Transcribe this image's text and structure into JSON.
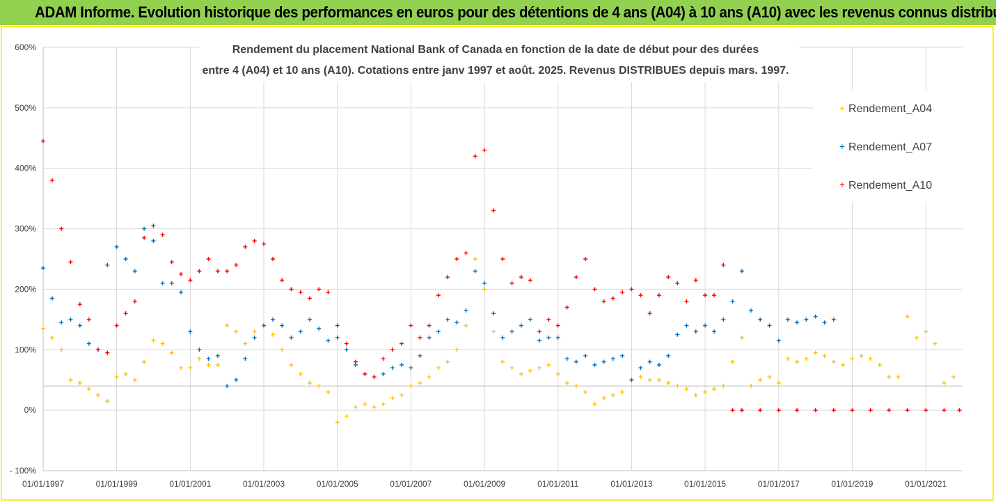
{
  "header": {
    "title": "ADAM Informe. Evolution historique des performances en euros pour des détentions de 4 ans (A04) à 10 ans (A10) avec les revenus connus distribués"
  },
  "chart_data": {
    "type": "scatter",
    "title_lines": [
      "Rendement du placement National Bank of Canada en fonction de la date de début pour des durées",
      "entre 4 (A04) et 10 ans (A10). Cotations entre janv 1997 et août. 2025. Revenus DISTRIBUES depuis mars. 1997."
    ],
    "xlabel": "",
    "ylabel": "",
    "x_tick_labels": [
      "01/01/1997",
      "01/01/1999",
      "01/01/2001",
      "01/01/2003",
      "01/01/2005",
      "01/01/2007",
      "01/01/2009",
      "01/01/2011",
      "01/01/2013",
      "01/01/2015",
      "01/01/2017",
      "01/01/2019",
      "01/01/2021"
    ],
    "xlim": [
      "1997-01-01",
      "2022-01-01"
    ],
    "y_tick_labels": [
      "600%",
      "500%",
      "400%",
      "300%",
      "200%",
      "100%",
      "0%",
      "- 100%"
    ],
    "ylim": [
      -100,
      600
    ],
    "reference_line": 40,
    "grid": true,
    "legend_position": "right",
    "marker": "+",
    "colors": {
      "A04": "#ffc000",
      "A07": "#0070c0",
      "A10": "#ff0000"
    },
    "series": [
      {
        "name": "Rendement_A04",
        "color": "#ffc000",
        "points": [
          [
            "1997-01",
            135
          ],
          [
            "1997-04",
            120
          ],
          [
            "1997-07",
            100
          ],
          [
            "1997-10",
            50
          ],
          [
            "1998-01",
            45
          ],
          [
            "1998-04",
            35
          ],
          [
            "1998-07",
            25
          ],
          [
            "1998-10",
            15
          ],
          [
            "1999-01",
            55
          ],
          [
            "1999-04",
            60
          ],
          [
            "1999-07",
            50
          ],
          [
            "1999-10",
            80
          ],
          [
            "2000-01",
            115
          ],
          [
            "2000-04",
            110
          ],
          [
            "2000-07",
            95
          ],
          [
            "2000-10",
            70
          ],
          [
            "2001-01",
            70
          ],
          [
            "2001-04",
            85
          ],
          [
            "2001-07",
            75
          ],
          [
            "2001-10",
            75
          ],
          [
            "2002-01",
            140
          ],
          [
            "2002-04",
            130
          ],
          [
            "2002-07",
            110
          ],
          [
            "2002-10",
            130
          ],
          [
            "2003-01",
            140
          ],
          [
            "2003-04",
            125
          ],
          [
            "2003-07",
            100
          ],
          [
            "2003-10",
            75
          ],
          [
            "2004-01",
            60
          ],
          [
            "2004-04",
            45
          ],
          [
            "2004-07",
            40
          ],
          [
            "2004-10",
            30
          ],
          [
            "2005-01",
            -20
          ],
          [
            "2005-04",
            -10
          ],
          [
            "2005-07",
            5
          ],
          [
            "2005-10",
            10
          ],
          [
            "2006-01",
            5
          ],
          [
            "2006-04",
            10
          ],
          [
            "2006-07",
            20
          ],
          [
            "2006-10",
            25
          ],
          [
            "2007-01",
            40
          ],
          [
            "2007-04",
            45
          ],
          [
            "2007-07",
            55
          ],
          [
            "2007-10",
            70
          ],
          [
            "2008-01",
            80
          ],
          [
            "2008-04",
            100
          ],
          [
            "2008-07",
            140
          ],
          [
            "2008-10",
            250
          ],
          [
            "2009-01",
            200
          ],
          [
            "2009-04",
            130
          ],
          [
            "2009-07",
            80
          ],
          [
            "2009-10",
            70
          ],
          [
            "2010-01",
            60
          ],
          [
            "2010-04",
            65
          ],
          [
            "2010-07",
            70
          ],
          [
            "2010-10",
            75
          ],
          [
            "2011-01",
            60
          ],
          [
            "2011-04",
            45
          ],
          [
            "2011-07",
            40
          ],
          [
            "2011-10",
            30
          ],
          [
            "2012-01",
            10
          ],
          [
            "2012-04",
            20
          ],
          [
            "2012-07",
            25
          ],
          [
            "2012-10",
            30
          ],
          [
            "2013-01",
            50
          ],
          [
            "2013-04",
            55
          ],
          [
            "2013-07",
            50
          ],
          [
            "2013-10",
            50
          ],
          [
            "2014-01",
            45
          ],
          [
            "2014-04",
            40
          ],
          [
            "2014-07",
            35
          ],
          [
            "2014-10",
            25
          ],
          [
            "2015-01",
            30
          ],
          [
            "2015-04",
            35
          ],
          [
            "2015-07",
            40
          ],
          [
            "2015-10",
            80
          ],
          [
            "2016-01",
            120
          ],
          [
            "2016-04",
            40
          ],
          [
            "2016-07",
            50
          ],
          [
            "2016-10",
            55
          ],
          [
            "2017-01",
            45
          ],
          [
            "2017-04",
            85
          ],
          [
            "2017-07",
            80
          ],
          [
            "2017-10",
            85
          ],
          [
            "2018-01",
            95
          ],
          [
            "2018-04",
            90
          ],
          [
            "2018-07",
            80
          ],
          [
            "2018-10",
            75
          ],
          [
            "2019-01",
            85
          ],
          [
            "2019-04",
            90
          ],
          [
            "2019-07",
            85
          ],
          [
            "2019-10",
            75
          ],
          [
            "2020-01",
            55
          ],
          [
            "2020-04",
            55
          ],
          [
            "2020-07",
            155
          ],
          [
            "2020-10",
            120
          ],
          [
            "2021-01",
            130
          ],
          [
            "2021-04",
            110
          ],
          [
            "2021-07",
            45
          ],
          [
            "2021-10",
            55
          ]
        ]
      },
      {
        "name": "Rendement_A07",
        "color": "#0070c0",
        "points": [
          [
            "1997-01",
            235
          ],
          [
            "1997-04",
            185
          ],
          [
            "1997-07",
            145
          ],
          [
            "1997-10",
            150
          ],
          [
            "1998-01",
            140
          ],
          [
            "1998-04",
            110
          ],
          [
            "1998-07",
            100
          ],
          [
            "1998-10",
            240
          ],
          [
            "1999-01",
            270
          ],
          [
            "1999-04",
            250
          ],
          [
            "1999-07",
            230
          ],
          [
            "1999-10",
            300
          ],
          [
            "2000-01",
            280
          ],
          [
            "2000-04",
            210
          ],
          [
            "2000-07",
            210
          ],
          [
            "2000-10",
            195
          ],
          [
            "2001-01",
            130
          ],
          [
            "2001-04",
            100
          ],
          [
            "2001-07",
            85
          ],
          [
            "2001-10",
            90
          ],
          [
            "2002-01",
            40
          ],
          [
            "2002-04",
            50
          ],
          [
            "2002-07",
            85
          ],
          [
            "2002-10",
            120
          ],
          [
            "2003-01",
            140
          ],
          [
            "2003-04",
            150
          ],
          [
            "2003-07",
            140
          ],
          [
            "2003-10",
            120
          ],
          [
            "2004-01",
            130
          ],
          [
            "2004-04",
            150
          ],
          [
            "2004-07",
            135
          ],
          [
            "2004-10",
            115
          ],
          [
            "2005-01",
            120
          ],
          [
            "2005-04",
            100
          ],
          [
            "2005-07",
            75
          ],
          [
            "2005-10",
            60
          ],
          [
            "2006-01",
            55
          ],
          [
            "2006-04",
            60
          ],
          [
            "2006-07",
            70
          ],
          [
            "2006-10",
            75
          ],
          [
            "2007-01",
            70
          ],
          [
            "2007-04",
            90
          ],
          [
            "2007-07",
            120
          ],
          [
            "2007-10",
            130
          ],
          [
            "2008-01",
            150
          ],
          [
            "2008-04",
            145
          ],
          [
            "2008-07",
            165
          ],
          [
            "2008-10",
            230
          ],
          [
            "2009-01",
            210
          ],
          [
            "2009-04",
            160
          ],
          [
            "2009-07",
            120
          ],
          [
            "2009-10",
            130
          ],
          [
            "2010-01",
            140
          ],
          [
            "2010-04",
            150
          ],
          [
            "2010-07",
            115
          ],
          [
            "2010-10",
            120
          ],
          [
            "2011-01",
            120
          ],
          [
            "2011-04",
            85
          ],
          [
            "2011-07",
            80
          ],
          [
            "2011-10",
            90
          ],
          [
            "2012-01",
            75
          ],
          [
            "2012-04",
            80
          ],
          [
            "2012-07",
            85
          ],
          [
            "2012-10",
            90
          ],
          [
            "2013-01",
            50
          ],
          [
            "2013-04",
            70
          ],
          [
            "2013-07",
            80
          ],
          [
            "2013-10",
            75
          ],
          [
            "2014-01",
            90
          ],
          [
            "2014-04",
            125
          ],
          [
            "2014-07",
            140
          ],
          [
            "2014-10",
            130
          ],
          [
            "2015-01",
            140
          ],
          [
            "2015-04",
            130
          ],
          [
            "2015-07",
            150
          ],
          [
            "2015-10",
            180
          ],
          [
            "2016-01",
            230
          ],
          [
            "2016-04",
            165
          ],
          [
            "2016-07",
            150
          ],
          [
            "2016-10",
            140
          ],
          [
            "2017-01",
            115
          ],
          [
            "2017-04",
            150
          ],
          [
            "2017-07",
            145
          ],
          [
            "2017-10",
            150
          ],
          [
            "2018-01",
            155
          ],
          [
            "2018-04",
            145
          ],
          [
            "2018-07",
            150
          ]
        ]
      },
      {
        "name": "Rendement_A10",
        "color": "#ff0000",
        "points": [
          [
            "1997-01",
            445
          ],
          [
            "1997-04",
            380
          ],
          [
            "1997-07",
            300
          ],
          [
            "1997-10",
            245
          ],
          [
            "1998-01",
            175
          ],
          [
            "1998-04",
            150
          ],
          [
            "1998-07",
            100
          ],
          [
            "1998-10",
            95
          ],
          [
            "1999-01",
            140
          ],
          [
            "1999-04",
            160
          ],
          [
            "1999-07",
            180
          ],
          [
            "1999-10",
            285
          ],
          [
            "2000-01",
            305
          ],
          [
            "2000-04",
            290
          ],
          [
            "2000-07",
            245
          ],
          [
            "2000-10",
            225
          ],
          [
            "2001-01",
            215
          ],
          [
            "2001-04",
            230
          ],
          [
            "2001-07",
            250
          ],
          [
            "2001-10",
            230
          ],
          [
            "2002-01",
            230
          ],
          [
            "2002-04",
            240
          ],
          [
            "2002-07",
            270
          ],
          [
            "2002-10",
            280
          ],
          [
            "2003-01",
            275
          ],
          [
            "2003-04",
            250
          ],
          [
            "2003-07",
            215
          ],
          [
            "2003-10",
            200
          ],
          [
            "2004-01",
            195
          ],
          [
            "2004-04",
            185
          ],
          [
            "2004-07",
            200
          ],
          [
            "2004-10",
            195
          ],
          [
            "2005-01",
            140
          ],
          [
            "2005-04",
            110
          ],
          [
            "2005-07",
            80
          ],
          [
            "2005-10",
            60
          ],
          [
            "2006-01",
            55
          ],
          [
            "2006-04",
            85
          ],
          [
            "2006-07",
            100
          ],
          [
            "2006-10",
            110
          ],
          [
            "2007-01",
            140
          ],
          [
            "2007-04",
            120
          ],
          [
            "2007-07",
            140
          ],
          [
            "2007-10",
            190
          ],
          [
            "2008-01",
            220
          ],
          [
            "2008-04",
            250
          ],
          [
            "2008-07",
            260
          ],
          [
            "2008-10",
            420
          ],
          [
            "2009-01",
            430
          ],
          [
            "2009-04",
            330
          ],
          [
            "2009-07",
            250
          ],
          [
            "2009-10",
            210
          ],
          [
            "2010-01",
            220
          ],
          [
            "2010-04",
            215
          ],
          [
            "2010-07",
            130
          ],
          [
            "2010-10",
            150
          ],
          [
            "2011-01",
            140
          ],
          [
            "2011-04",
            170
          ],
          [
            "2011-07",
            220
          ],
          [
            "2011-10",
            250
          ],
          [
            "2012-01",
            200
          ],
          [
            "2012-04",
            180
          ],
          [
            "2012-07",
            185
          ],
          [
            "2012-10",
            195
          ],
          [
            "2013-01",
            200
          ],
          [
            "2013-04",
            190
          ],
          [
            "2013-07",
            160
          ],
          [
            "2013-10",
            190
          ],
          [
            "2014-01",
            220
          ],
          [
            "2014-04",
            210
          ],
          [
            "2014-07",
            180
          ],
          [
            "2014-10",
            215
          ],
          [
            "2015-01",
            190
          ],
          [
            "2015-04",
            190
          ],
          [
            "2015-07",
            240
          ],
          [
            "2015-10",
            0
          ],
          [
            "2016-01",
            0
          ],
          [
            "2016-07",
            0
          ],
          [
            "2017-01",
            0
          ],
          [
            "2017-07",
            0
          ],
          [
            "2018-01",
            0
          ],
          [
            "2018-07",
            0
          ],
          [
            "2019-01",
            0
          ],
          [
            "2019-07",
            0
          ],
          [
            "2020-01",
            0
          ],
          [
            "2020-07",
            0
          ],
          [
            "2021-01",
            0
          ],
          [
            "2021-07",
            0
          ],
          [
            "2021-12",
            0
          ]
        ]
      }
    ]
  }
}
